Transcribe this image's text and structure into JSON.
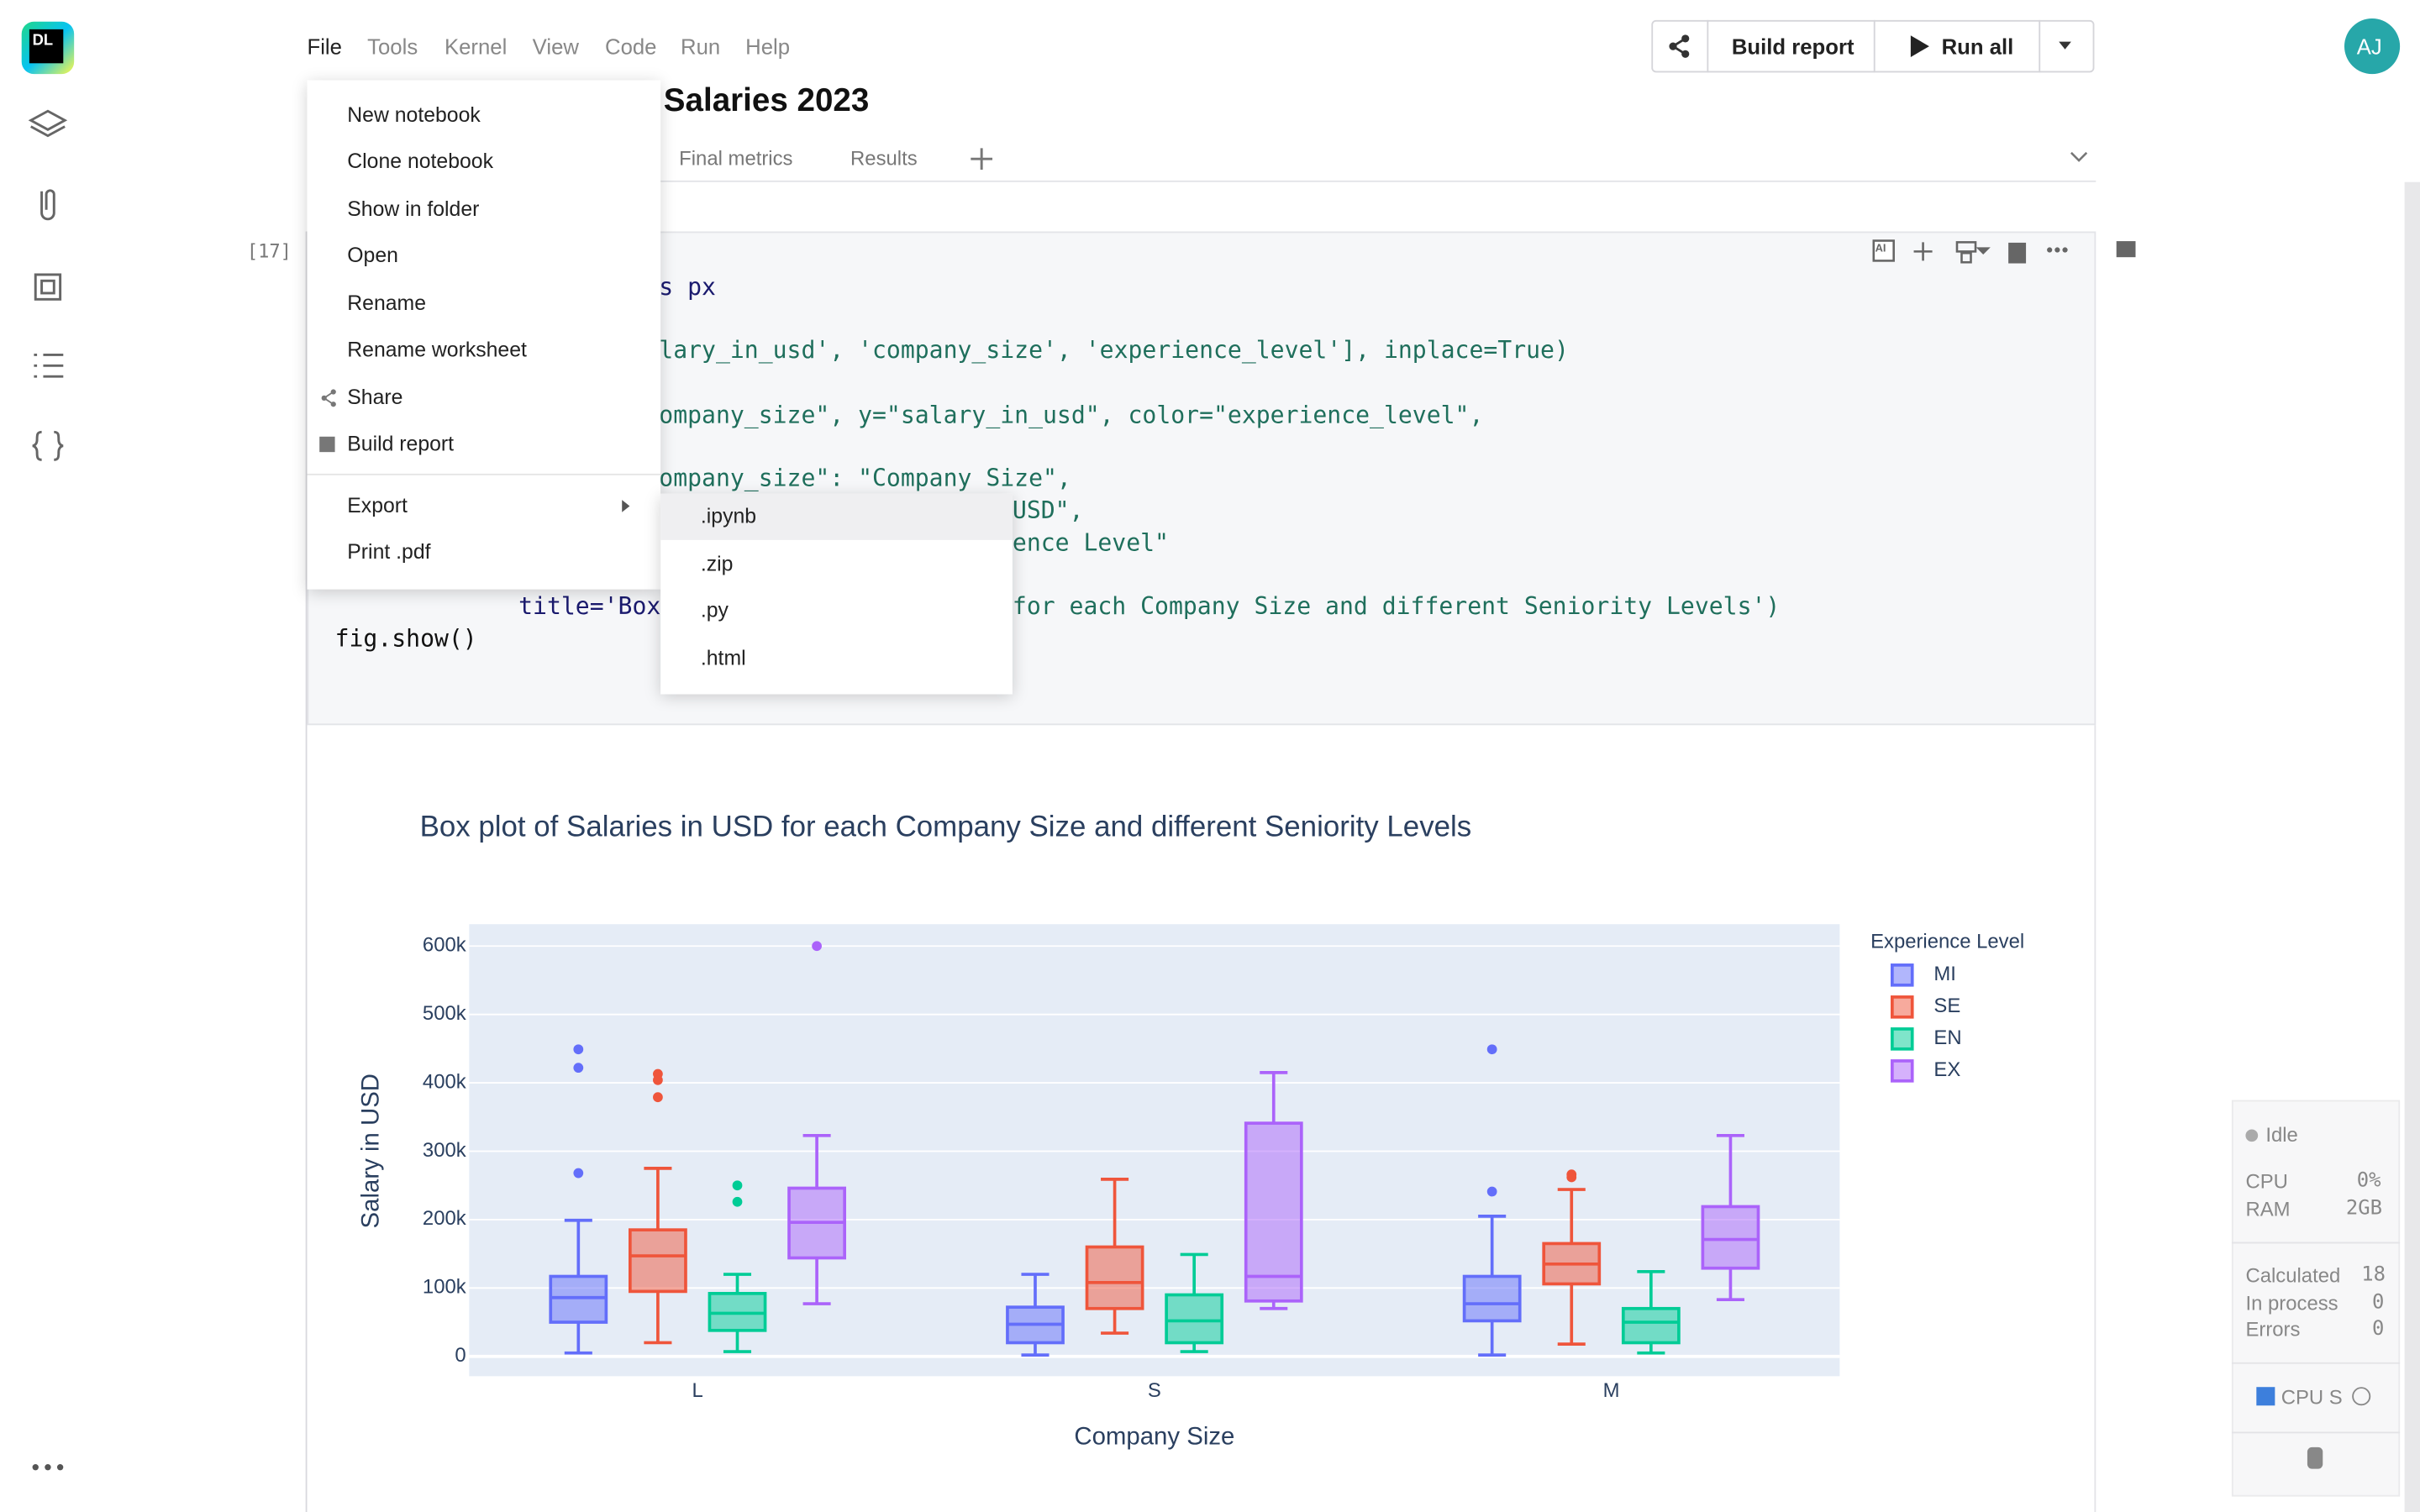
{
  "sidebar_logo": "DL",
  "menu": [
    "File",
    "Tools",
    "Kernel",
    "View",
    "Code",
    "Run",
    "Help"
  ],
  "toolbar": {
    "build_report": "Build report",
    "run_all": "Run all"
  },
  "avatar": "AJ",
  "notebook_title": "Salaries 2023",
  "tabs": [
    "Final metrics",
    "Results"
  ],
  "cell": {
    "execution_count": "[17]",
    "ai": "AI",
    "code": [
      "s px",
      "lary_in_usd', 'company_size', 'experience_level'], inplace=True)",
      "ompany_size\", y=\"salary_in_usd\", color=\"experience_level\",",
      "ompany_size\": \"Company Size\",",
      "USD\",",
      "ence Level\"",
      "title='Box",
      "for each Company Size and different Seniority Levels')",
      "fig.show()"
    ]
  },
  "file_menu": {
    "items": [
      "New notebook",
      "Clone notebook",
      "Show in folder",
      "Open",
      "Rename",
      "Rename worksheet",
      "Share",
      "Build report"
    ],
    "export": "Export",
    "print": "Print .pdf"
  },
  "export_menu": [
    ".ipynb",
    ".zip",
    ".py",
    ".html"
  ],
  "status": {
    "state": "Idle",
    "cpu_label": "CPU",
    "cpu_value": "0%",
    "ram_label": "RAM",
    "ram_value": "2GB",
    "calculated_label": "Calculated",
    "calculated": 18,
    "in_process_label": "In process",
    "in_process": 0,
    "errors_label": "Errors",
    "errors": 0,
    "kernel": "CPU S"
  },
  "chart": {
    "type": "box",
    "title": "Box plot of Salaries in USD for each Company Size and different Seniority Levels",
    "x_label": "Company Size",
    "y_label": "Salary in USD",
    "legend_title": "Experience Level",
    "categories": [
      "L",
      "S",
      "M"
    ],
    "ylim": [
      -29000,
      632000
    ],
    "yticks": [
      0,
      {
        "value": 100000,
        "label": "100k"
      },
      {
        "value": 200000,
        "label": "200k"
      },
      {
        "value": 300000,
        "label": "300k"
      },
      {
        "value": 400000,
        "label": "400k"
      },
      {
        "value": 500000,
        "label": "500k"
      },
      {
        "value": 600000,
        "label": "600k"
      }
    ],
    "grid": true,
    "series": [
      {
        "name": "MI",
        "color": "#636efa",
        "values": [
          {
            "low": 5000,
            "q1": 50000,
            "median": 86000,
            "q3": 117000,
            "high": 199000,
            "outliers": [
              449000,
              422000,
              268000
            ]
          },
          {
            "low": 2000,
            "q1": 20000,
            "median": 47000,
            "q3": 72000,
            "high": 120000,
            "outliers": []
          },
          {
            "low": 2000,
            "q1": 52000,
            "median": 77000,
            "q3": 117000,
            "high": 205000,
            "outliers": [
              449000,
              241000
            ]
          }
        ]
      },
      {
        "name": "SE",
        "color": "#ef553b",
        "values": [
          {
            "low": 20000,
            "q1": 95000,
            "median": 147000,
            "q3": 185000,
            "high": 275000,
            "outliers": [
              413000,
              404000,
              379000
            ]
          },
          {
            "low": 34000,
            "q1": 70000,
            "median": 108000,
            "q3": 160000,
            "high": 259000,
            "outliers": []
          },
          {
            "low": 18000,
            "q1": 106000,
            "median": 135000,
            "q3": 165000,
            "high": 244000,
            "outliers": [
              266000,
              262000
            ]
          }
        ]
      },
      {
        "name": "EN",
        "color": "#00cc96",
        "values": [
          {
            "low": 7000,
            "q1": 38000,
            "median": 63000,
            "q3": 92000,
            "high": 120000,
            "outliers": [
              250000,
              226000
            ]
          },
          {
            "low": 7000,
            "q1": 20000,
            "median": 52000,
            "q3": 90000,
            "high": 149000,
            "outliers": []
          },
          {
            "low": 5000,
            "q1": 20000,
            "median": 50000,
            "q3": 70000,
            "high": 124000,
            "outliers": []
          }
        ]
      },
      {
        "name": "EX",
        "color": "#ab63fa",
        "values": [
          {
            "low": 77000,
            "q1": 144000,
            "median": 196000,
            "q3": 246000,
            "high": 323000,
            "outliers": [
              600000
            ]
          },
          {
            "low": 70000,
            "q1": 81000,
            "median": 117000,
            "q3": 341000,
            "high": 415000,
            "outliers": []
          },
          {
            "low": 83000,
            "q1": 129000,
            "median": 171000,
            "q3": 219000,
            "high": 323000,
            "outliers": []
          }
        ]
      }
    ]
  }
}
